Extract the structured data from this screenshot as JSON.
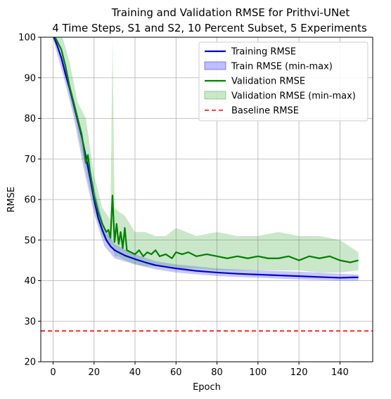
{
  "chart_data": {
    "type": "line",
    "title": "Training and Validation RMSE for Prithvi-UNet",
    "subtitle": "4 Time Steps, S1 and S2, 10 Percent Subset, 5 Experiments",
    "xlabel": "Epoch",
    "ylabel": "RMSE",
    "xlim": [
      -6,
      156
    ],
    "ylim": [
      20,
      100
    ],
    "xticks": [
      0,
      20,
      40,
      60,
      80,
      100,
      120,
      140
    ],
    "yticks": [
      20,
      30,
      40,
      50,
      60,
      70,
      80,
      90,
      100
    ],
    "grid": true,
    "legend_position": "top-right",
    "baseline": 27.6,
    "series": [
      {
        "name": "Training RMSE",
        "color": "#0000cc",
        "x": [
          0,
          2,
          4,
          6,
          8,
          10,
          12,
          14,
          16,
          18,
          20,
          22,
          24,
          26,
          28,
          30,
          35,
          40,
          45,
          50,
          60,
          70,
          80,
          90,
          100,
          110,
          120,
          130,
          140,
          146,
          149
        ],
        "values": [
          100.5,
          98,
          95,
          91,
          87.5,
          83.5,
          79.5,
          75.5,
          70.5,
          65.5,
          60,
          55.5,
          52.5,
          50,
          48.5,
          47.5,
          46.2,
          45.3,
          44.5,
          43.8,
          43,
          42.4,
          42,
          41.7,
          41.5,
          41.3,
          41.1,
          40.9,
          40.7,
          40.8,
          40.8
        ]
      },
      {
        "name": "Validation RMSE",
        "color": "#008000",
        "x": [
          0,
          2,
          4,
          6,
          8,
          10,
          12,
          14,
          16,
          17,
          18,
          19,
          20,
          22,
          24,
          26,
          27,
          28,
          29,
          30,
          31,
          32,
          33,
          34,
          35,
          36,
          38,
          40,
          42,
          44,
          46,
          48,
          50,
          52,
          55,
          58,
          60,
          63,
          66,
          70,
          75,
          80,
          85,
          90,
          95,
          100,
          105,
          110,
          115,
          120,
          125,
          130,
          135,
          140,
          145,
          149
        ],
        "values": [
          101,
          99,
          97,
          93,
          88,
          84,
          80,
          76,
          69,
          71,
          67,
          64,
          61,
          57,
          54,
          52,
          52.5,
          50.5,
          61,
          49.5,
          54,
          49,
          52,
          48,
          53,
          47.5,
          47,
          46.5,
          47.5,
          46,
          47,
          46.5,
          47.5,
          46,
          46.5,
          45.5,
          47,
          46.5,
          47,
          46,
          46.5,
          46,
          45.5,
          46,
          45.5,
          46,
          45.5,
          45.5,
          46,
          45,
          46,
          45.5,
          46,
          45,
          44.5,
          45
        ]
      }
    ],
    "bands": [
      {
        "name": "Train RMSE (min-max)",
        "color": "#0000ff",
        "x": [
          0,
          5,
          10,
          15,
          20,
          25,
          30,
          40,
          50,
          60,
          80,
          100,
          120,
          140,
          149
        ],
        "low": [
          99.5,
          90.5,
          80.5,
          67.5,
          56.5,
          48.5,
          45.5,
          44,
          42.8,
          42,
          41.1,
          40.7,
          40.3,
          40,
          40
        ],
        "high": [
          100.5,
          94,
          85,
          74,
          63,
          53,
          49,
          46.5,
          44.8,
          44,
          43,
          42.5,
          42.2,
          41.7,
          41.5
        ]
      },
      {
        "name": "Validation RMSE (min-max)",
        "color": "#2ca02c",
        "x": [
          0,
          4,
          8,
          12,
          16,
          20,
          24,
          28,
          29,
          30,
          32,
          35,
          40,
          45,
          50,
          55,
          60,
          70,
          80,
          90,
          100,
          110,
          120,
          130,
          140,
          149
        ],
        "low": [
          100,
          94,
          86,
          77,
          67,
          58,
          51,
          48,
          49,
          46,
          46,
          45,
          44,
          43.5,
          43.5,
          43.5,
          43,
          43,
          42.5,
          42.5,
          42.5,
          42.5,
          42.5,
          42,
          42,
          42.5
        ],
        "high": [
          101,
          101,
          94,
          84,
          80,
          66,
          58,
          55,
          100,
          58,
          57,
          56,
          52,
          52,
          51,
          51,
          53,
          51,
          52,
          51,
          51,
          52,
          51,
          51,
          50,
          47
        ]
      }
    ],
    "legend": [
      {
        "label": "Training RMSE",
        "kind": "line",
        "color": "#0000cc"
      },
      {
        "label": "Train RMSE (min-max)",
        "kind": "patch",
        "color": "#0000ff"
      },
      {
        "label": "Validation RMSE",
        "kind": "line",
        "color": "#008000"
      },
      {
        "label": "Validation RMSE (min-max)",
        "kind": "patch",
        "color": "#2ca02c"
      },
      {
        "label": "Baseline RMSE",
        "kind": "dashed",
        "color": "#ff0000"
      }
    ]
  }
}
